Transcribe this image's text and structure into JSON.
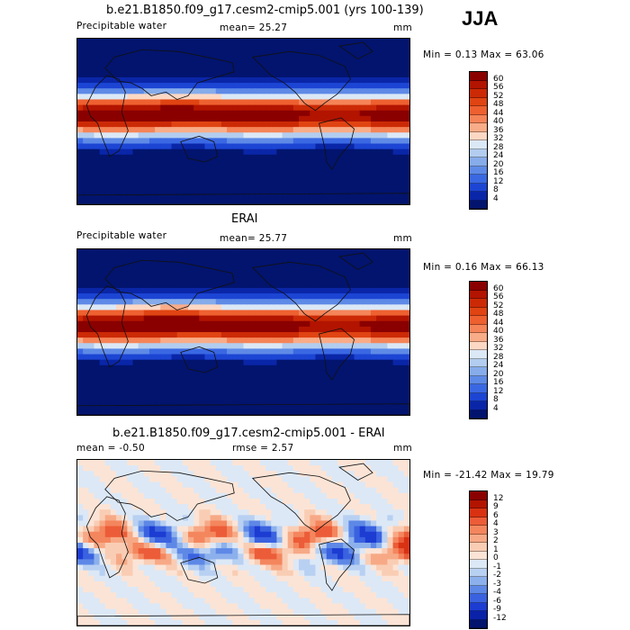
{
  "season": "JJA",
  "panels": [
    {
      "title": "b.e21.B1850.f09_g17.cesm2-cmip5.001 (yrs 100-139)",
      "left_label": "Precipitable water",
      "center_label": "mean=  25.27",
      "units": "mm",
      "minmax": "Min =   0.13 Max =  63.06",
      "field": "model",
      "colorbar": {
        "labels": [
          "60",
          "56",
          "52",
          "48",
          "44",
          "40",
          "36",
          "32",
          "28",
          "24",
          "20",
          "16",
          "12",
          "8",
          "4"
        ],
        "colors": [
          "#8a0000",
          "#b21400",
          "#cc2a06",
          "#e04412",
          "#ee6030",
          "#f58458",
          "#f9ac88",
          "#fcd8c4",
          "#dbe8f6",
          "#b2cdef",
          "#86acea",
          "#5e8ae7",
          "#3a68e3",
          "#1c45d4",
          "#0a26a8",
          "#02146e"
        ]
      }
    },
    {
      "title": "ERAI",
      "left_label": "Precipitable water",
      "center_label": "mean=  25.77",
      "units": "mm",
      "minmax": "Min =   0.16 Max =  66.13",
      "field": "obs",
      "colorbar": {
        "labels": [
          "60",
          "56",
          "52",
          "48",
          "44",
          "40",
          "36",
          "32",
          "28",
          "24",
          "20",
          "16",
          "12",
          "8",
          "4"
        ],
        "colors": [
          "#8a0000",
          "#b21400",
          "#cc2a06",
          "#e04412",
          "#ee6030",
          "#f58458",
          "#f9ac88",
          "#fcd8c4",
          "#dbe8f6",
          "#b2cdef",
          "#86acea",
          "#5e8ae7",
          "#3a68e3",
          "#1c45d4",
          "#0a26a8",
          "#02146e"
        ]
      }
    },
    {
      "title": "b.e21.B1850.f09_g17.cesm2-cmip5.001 - ERAI",
      "left_label": "mean =  -0.50",
      "center_label": "rmse =   2.57",
      "units": "mm",
      "minmax": "Min = -21.42 Max =  19.79",
      "field": "diff",
      "colorbar": {
        "labels": [
          "12",
          "9",
          "6",
          "4",
          "3",
          "2",
          "1",
          "0",
          "-1",
          "-2",
          "-3",
          "-4",
          "-6",
          "-9",
          "-12"
        ],
        "colors": [
          "#8a0000",
          "#b21400",
          "#d83212",
          "#ec5c38",
          "#f4865e",
          "#f7a986",
          "#f9cdb4",
          "#fbe4d6",
          "#dce8f6",
          "#b8d0f2",
          "#8cb0ec",
          "#5e88e6",
          "#3a62e0",
          "#1c3cd2",
          "#0a22a8",
          "#02146e"
        ]
      }
    }
  ]
}
